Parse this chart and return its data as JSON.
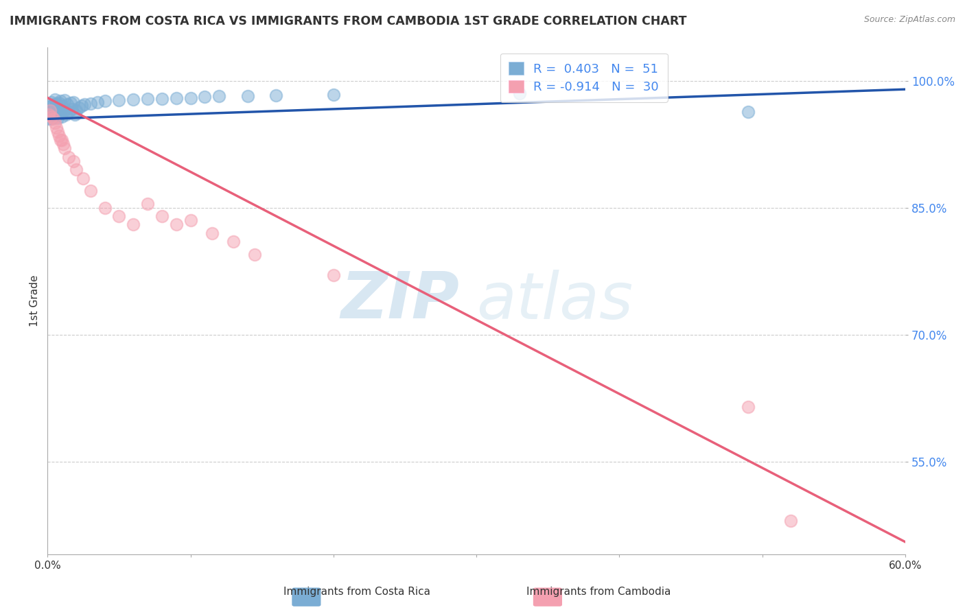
{
  "title": "IMMIGRANTS FROM COSTA RICA VS IMMIGRANTS FROM CAMBODIA 1ST GRADE CORRELATION CHART",
  "source": "Source: ZipAtlas.com",
  "ylabel": "1st Grade",
  "xlim": [
    0.0,
    0.6
  ],
  "ylim": [
    0.44,
    1.04
  ],
  "xticks": [
    0.0,
    0.1,
    0.2,
    0.3,
    0.4,
    0.5,
    0.6
  ],
  "xticklabels": [
    "0.0%",
    "",
    "",
    "",
    "",
    "",
    "60.0%"
  ],
  "yticks": [
    0.55,
    0.7,
    0.85,
    1.0
  ],
  "yticklabels": [
    "55.0%",
    "70.0%",
    "85.0%",
    "100.0%"
  ],
  "legend_label1": "Immigrants from Costa Rica",
  "legend_label2": "Immigrants from Cambodia",
  "R1": 0.403,
  "N1": 51,
  "R2": -0.914,
  "N2": 30,
  "blue_color": "#7BADD4",
  "pink_color": "#F4A0B0",
  "blue_line_color": "#2255AA",
  "pink_line_color": "#E8607A",
  "blue_scatter_x": [
    0.001,
    0.002,
    0.002,
    0.003,
    0.003,
    0.003,
    0.004,
    0.004,
    0.005,
    0.005,
    0.005,
    0.006,
    0.006,
    0.007,
    0.007,
    0.008,
    0.008,
    0.009,
    0.009,
    0.01,
    0.01,
    0.011,
    0.012,
    0.012,
    0.013,
    0.014,
    0.015,
    0.016,
    0.017,
    0.018,
    0.019,
    0.02,
    0.022,
    0.024,
    0.026,
    0.03,
    0.035,
    0.04,
    0.05,
    0.06,
    0.07,
    0.08,
    0.09,
    0.1,
    0.11,
    0.12,
    0.14,
    0.16,
    0.2,
    0.33,
    0.49
  ],
  "blue_scatter_y": [
    0.955,
    0.96,
    0.97,
    0.955,
    0.965,
    0.975,
    0.96,
    0.972,
    0.958,
    0.968,
    0.978,
    0.962,
    0.973,
    0.956,
    0.969,
    0.961,
    0.974,
    0.964,
    0.976,
    0.958,
    0.971,
    0.963,
    0.966,
    0.977,
    0.96,
    0.972,
    0.963,
    0.974,
    0.967,
    0.975,
    0.96,
    0.965,
    0.968,
    0.971,
    0.972,
    0.973,
    0.975,
    0.976,
    0.977,
    0.978,
    0.979,
    0.979,
    0.98,
    0.98,
    0.981,
    0.982,
    0.982,
    0.983,
    0.984,
    0.985,
    0.963
  ],
  "pink_scatter_x": [
    0.001,
    0.002,
    0.003,
    0.004,
    0.005,
    0.006,
    0.007,
    0.008,
    0.009,
    0.01,
    0.011,
    0.012,
    0.015,
    0.018,
    0.02,
    0.025,
    0.03,
    0.04,
    0.05,
    0.06,
    0.07,
    0.08,
    0.09,
    0.1,
    0.115,
    0.13,
    0.145,
    0.2,
    0.49,
    0.52
  ],
  "pink_scatter_y": [
    0.96,
    0.965,
    0.958,
    0.955,
    0.95,
    0.945,
    0.94,
    0.935,
    0.93,
    0.93,
    0.925,
    0.92,
    0.91,
    0.905,
    0.895,
    0.885,
    0.87,
    0.85,
    0.84,
    0.83,
    0.855,
    0.84,
    0.83,
    0.835,
    0.82,
    0.81,
    0.795,
    0.77,
    0.615,
    0.48
  ],
  "blue_line_x": [
    0.0,
    0.6
  ],
  "blue_line_y": [
    0.955,
    0.99
  ],
  "pink_line_x": [
    0.0,
    0.6
  ],
  "pink_line_y": [
    0.98,
    0.455
  ]
}
